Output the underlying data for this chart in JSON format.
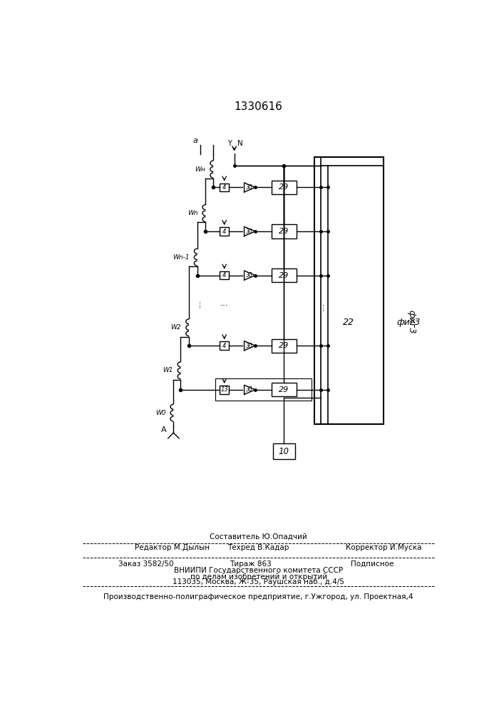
{
  "title": "1330616",
  "background": "#ffffff",
  "footer": {
    "line1_left": "Редактор М.Дылын",
    "line1_center_top": "Составитель Ю.Опадчий",
    "line1_center": "Техред В.Кадар",
    "line1_right": "Корректор И.Муска",
    "line2_left": "Заказ 3582/50",
    "line2_center": "Тираж 863",
    "line2_right": "Подписное",
    "line3": "ВНИИПИ Государственного комитета СССР",
    "line4": "по делам изобретений и открытий",
    "line5": "113035, Москва, Ж-35, Раушская наб., д.4/5",
    "line6": "Производственно-полиграфическое предприятие, г.Ужгород, ул. Проектная,4"
  }
}
